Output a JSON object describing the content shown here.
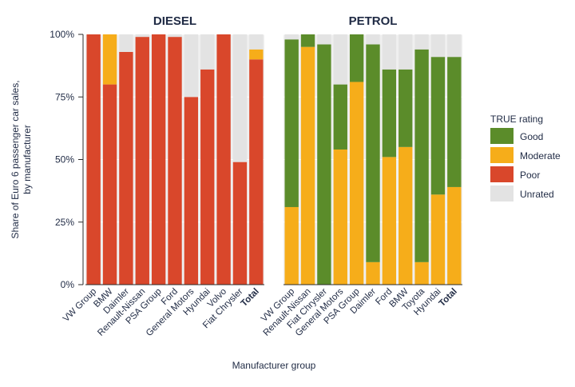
{
  "chart_data": {
    "type": "bar",
    "stacked": true,
    "ylabel": "Share of Euro 6 passenger car sales, by manufacturer",
    "xlabel": "Manufacturer group",
    "ylim": [
      0,
      100
    ],
    "yticks": [
      "0%",
      "25%",
      "50%",
      "75%",
      "100%"
    ],
    "ytick_values": [
      0,
      25,
      50,
      75,
      100
    ],
    "legend": {
      "title": "TRUE rating",
      "position": "right",
      "entries": [
        {
          "name": "Good",
          "color": "#5b8c2a"
        },
        {
          "name": "Moderate",
          "color": "#f6ad1a"
        },
        {
          "name": "Poor",
          "color": "#d9472b"
        },
        {
          "name": "Unrated",
          "color": "#e3e3e3"
        }
      ]
    },
    "panels": [
      {
        "title": "DIESEL",
        "categories": [
          "VW Group",
          "BMW",
          "Daimler",
          "Renault-Nissan",
          "PSA Group",
          "Ford",
          "General Motors",
          "Hyundai",
          "Volvo",
          "Fiat Chrysler",
          "Total"
        ],
        "bold_categories": [
          "Total"
        ],
        "series": [
          {
            "name": "Poor",
            "values": [
              100,
              80,
              93,
              99,
              100,
              99,
              75,
              86,
              100,
              49,
              90
            ]
          },
          {
            "name": "Moderate",
            "values": [
              0,
              20,
              0,
              0,
              0,
              0,
              0,
              0,
              0,
              0,
              4
            ]
          },
          {
            "name": "Good",
            "values": [
              0,
              0,
              0,
              0,
              0,
              0,
              0,
              0,
              0,
              0,
              0
            ]
          },
          {
            "name": "Unrated",
            "values": [
              0,
              0,
              7,
              1,
              0,
              1,
              25,
              14,
              0,
              51,
              6
            ]
          }
        ]
      },
      {
        "title": "PETROL",
        "categories": [
          "VW Group",
          "Renault-Nissan",
          "Fiat Chrysler",
          "General Motors",
          "PSA Group",
          "Daimler",
          "Ford",
          "BMW",
          "Toyota",
          "Hyundai",
          "Total"
        ],
        "bold_categories": [
          "Total"
        ],
        "series": [
          {
            "name": "Poor",
            "values": [
              0,
              0,
              0,
              0,
              0,
              0,
              0,
              0,
              0,
              0,
              0
            ]
          },
          {
            "name": "Moderate",
            "values": [
              31,
              95,
              0,
              54,
              81,
              9,
              51,
              55,
              9,
              36,
              39
            ]
          },
          {
            "name": "Good",
            "values": [
              67,
              5,
              96,
              26,
              19,
              87,
              35,
              31,
              85,
              55,
              52
            ]
          },
          {
            "name": "Unrated",
            "values": [
              2,
              0,
              4,
              20,
              0,
              4,
              14,
              14,
              6,
              9,
              9
            ]
          }
        ]
      }
    ]
  }
}
